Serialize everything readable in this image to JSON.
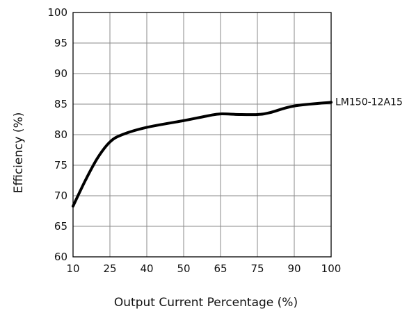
{
  "chart_data": {
    "type": "line",
    "title": "",
    "xlabel": "Output Current Percentage (%)",
    "ylabel": "Efficiency (%)",
    "x_ticks": [
      "10",
      "25",
      "40",
      "50",
      "65",
      "75",
      "90",
      "100"
    ],
    "y_ticks": [
      "60",
      "65",
      "70",
      "75",
      "80",
      "85",
      "90",
      "95",
      "100"
    ],
    "ylim": [
      60,
      100
    ],
    "grid": true,
    "series": [
      {
        "name": "LM150-12A15",
        "color": "#000000",
        "x": [
          10,
          15,
          20,
          25,
          30,
          40,
          50,
          60,
          65,
          70,
          75,
          80,
          90,
          100
        ],
        "y": [
          68.3,
          72.5,
          76.2,
          78.8,
          80.0,
          81.2,
          82.3,
          83.1,
          83.4,
          83.3,
          83.3,
          83.6,
          84.7,
          85.3
        ]
      }
    ]
  }
}
